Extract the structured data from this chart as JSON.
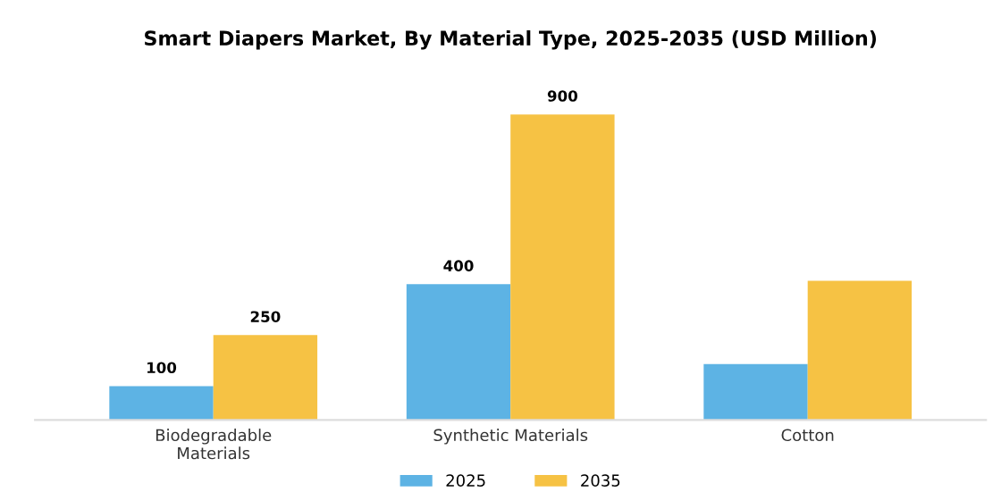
{
  "chart_data": {
    "type": "bar",
    "title": "Smart Diapers Market, By Material Type, 2025-2035 (USD Million)",
    "categories": [
      "Biodegradable\nMaterials",
      "Synthetic Materials",
      "Cotton"
    ],
    "series": [
      {
        "name": "2025",
        "color": "#5db3e4",
        "values": [
          100,
          400,
          165
        ],
        "value_labels": [
          "100",
          "400",
          null
        ]
      },
      {
        "name": "2035",
        "color": "#f6c244",
        "values": [
          250,
          900,
          410
        ],
        "value_labels": [
          "250",
          "900",
          null
        ]
      }
    ],
    "legend": "bottom",
    "grid": false
  }
}
